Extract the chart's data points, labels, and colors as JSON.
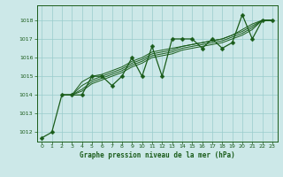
{
  "title": "Graphe pression niveau de la mer (hPa)",
  "background_color": "#cce8e8",
  "grid_color": "#99cccc",
  "line_color": "#1a5c1a",
  "marker_color": "#1a5c1a",
  "xlim": [
    -0.5,
    23.5
  ],
  "ylim": [
    1011.5,
    1018.8
  ],
  "yticks": [
    1012,
    1013,
    1014,
    1015,
    1016,
    1017,
    1018
  ],
  "xticks": [
    0,
    1,
    2,
    3,
    4,
    5,
    6,
    7,
    8,
    9,
    10,
    11,
    12,
    13,
    14,
    15,
    16,
    17,
    18,
    19,
    20,
    21,
    22,
    23
  ],
  "hours": [
    0,
    1,
    2,
    3,
    4,
    5,
    6,
    7,
    8,
    9,
    10,
    11,
    12,
    13,
    14,
    15,
    16,
    17,
    18,
    19,
    20,
    21,
    22,
    23
  ],
  "pressure_main": [
    1011.7,
    1012.0,
    1014.0,
    1014.0,
    1014.0,
    1015.0,
    1015.0,
    1014.5,
    1015.0,
    1016.0,
    1015.0,
    1016.6,
    1015.0,
    1017.0,
    1017.0,
    1017.0,
    1016.5,
    1017.0,
    1016.5,
    1016.8,
    1018.3,
    1017.0,
    1018.0,
    1018.0
  ],
  "pressure_smooth1": [
    1012.0,
    1012.0,
    1014.0,
    1014.0,
    1014.2,
    1014.6,
    1014.8,
    1015.0,
    1015.2,
    1015.5,
    1015.7,
    1016.0,
    1016.1,
    1016.2,
    1016.4,
    1016.5,
    1016.6,
    1016.7,
    1016.8,
    1017.0,
    1017.2,
    1017.5,
    1018.0,
    1018.0
  ],
  "pressure_smooth2": [
    1012.0,
    1012.0,
    1014.0,
    1014.0,
    1014.3,
    1014.7,
    1014.9,
    1015.1,
    1015.3,
    1015.6,
    1015.8,
    1016.1,
    1016.2,
    1016.3,
    1016.5,
    1016.6,
    1016.7,
    1016.8,
    1016.9,
    1017.1,
    1017.3,
    1017.6,
    1018.0,
    1018.0
  ],
  "pressure_smooth3": [
    1012.0,
    1012.0,
    1014.0,
    1014.0,
    1014.5,
    1014.8,
    1015.0,
    1015.2,
    1015.4,
    1015.7,
    1015.9,
    1016.2,
    1016.3,
    1016.4,
    1016.6,
    1016.7,
    1016.8,
    1016.9,
    1017.0,
    1017.2,
    1017.4,
    1017.7,
    1018.0,
    1018.0
  ],
  "pressure_smooth4": [
    1012.0,
    1012.0,
    1014.0,
    1014.0,
    1014.7,
    1015.0,
    1015.1,
    1015.3,
    1015.5,
    1015.8,
    1016.0,
    1016.3,
    1016.4,
    1016.5,
    1016.6,
    1016.7,
    1016.8,
    1016.9,
    1017.0,
    1017.2,
    1017.5,
    1017.8,
    1018.0,
    1018.0
  ]
}
